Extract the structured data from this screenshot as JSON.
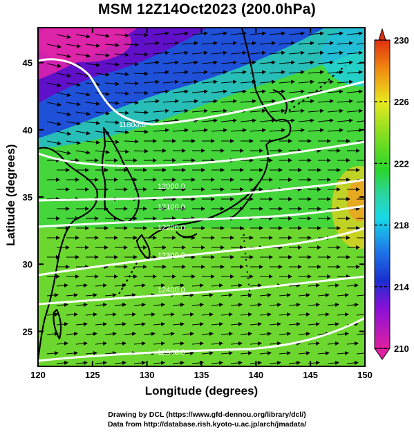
{
  "title": "MSM 12Z14Oct2023 (200.0hPa)",
  "xlabel": "Longitude (degrees)",
  "ylabel": "Latitude  (degrees)",
  "credits": [
    "Drawing by DCL (https://www.gfd-dennou.org/library/dcl/)",
    "Data from http://database.rish.kyoto-u.ac.jp/arch/jmadata/"
  ],
  "chart_data": {
    "type": "heatmap",
    "title": "MSM 12Z14Oct2023 (200.0hPa)",
    "xlabel": "Longitude (degrees)",
    "ylabel": "Latitude  (degrees)",
    "xlim": [
      120,
      150
    ],
    "ylim": [
      22.4,
      47.6
    ],
    "xticks": [
      120,
      125,
      130,
      135,
      140,
      145,
      150
    ],
    "yticks": [
      25,
      30,
      35,
      40,
      45
    ],
    "shading": {
      "variable": "temperature (K)",
      "colorbar_ticks": [
        210,
        214,
        218,
        222,
        226,
        230
      ],
      "range": [
        210,
        230
      ]
    },
    "contours": {
      "variable": "geopotential height (m)",
      "color": "#ffffff",
      "labeled_levels": [
        "11800.0",
        "12000.0",
        "12100.0",
        "12200.0",
        "12300.0",
        "12400.0",
        "12500.0"
      ]
    },
    "vectors": {
      "variable": "wind",
      "color": "#000000",
      "direction": "eastward"
    }
  },
  "colors": {
    "min": "#e020a0",
    "low": "#1a2fd0",
    "mid": "#2bd52b",
    "high": "#f0e020",
    "max": "#e03010",
    "coastline": "#000000",
    "contour": "#ffffff"
  }
}
